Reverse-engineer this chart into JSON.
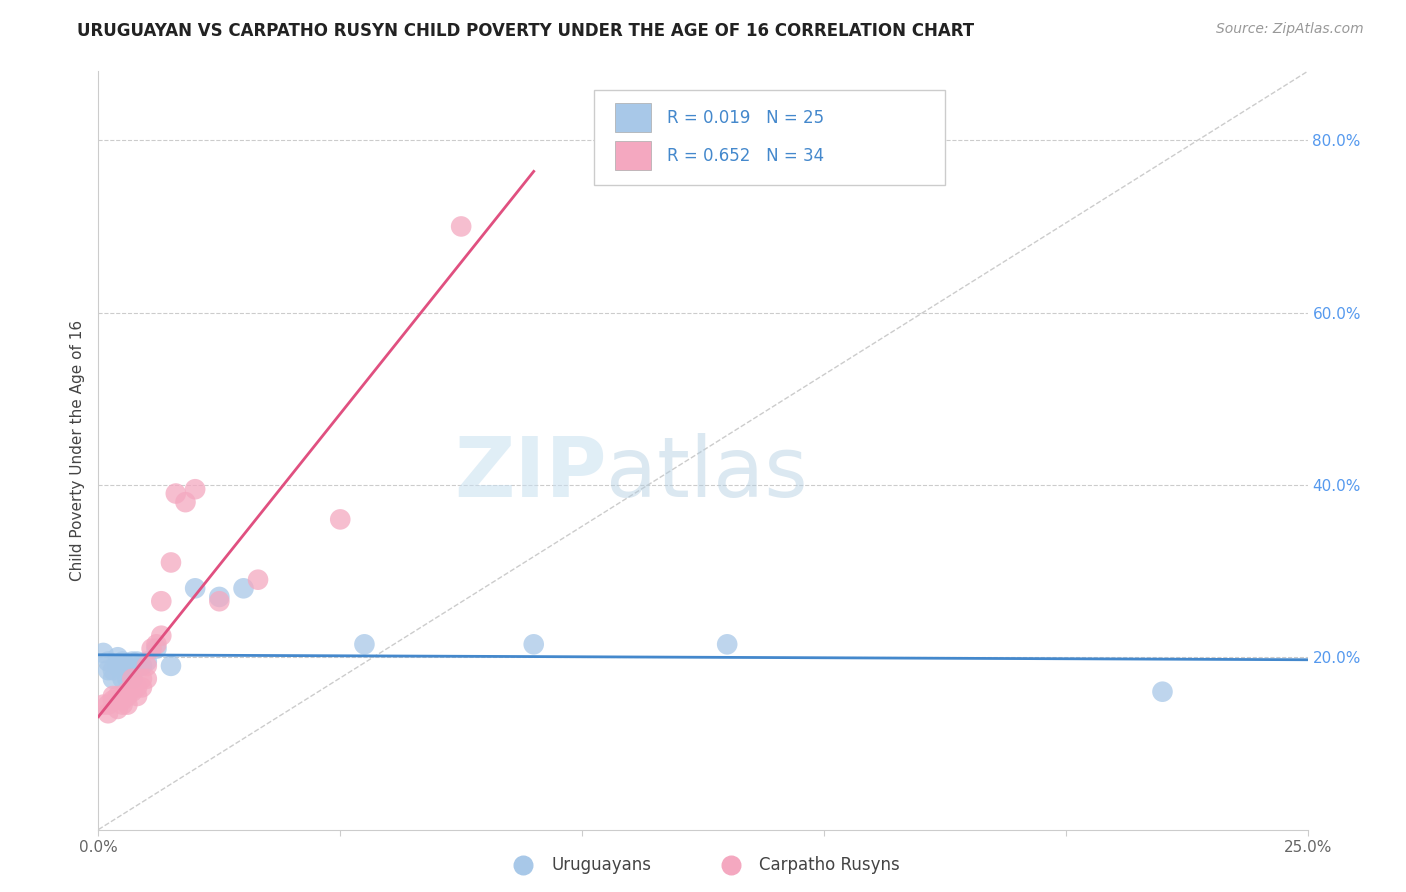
{
  "title": "URUGUAYAN VS CARPATHO RUSYN CHILD POVERTY UNDER THE AGE OF 16 CORRELATION CHART",
  "source": "Source: ZipAtlas.com",
  "ylabel": "Child Poverty Under the Age of 16",
  "xlim": [
    0.0,
    0.25
  ],
  "ylim": [
    0.0,
    0.88
  ],
  "xticks": [
    0.0,
    0.05,
    0.1,
    0.15,
    0.2,
    0.25
  ],
  "xticklabels": [
    "0.0%",
    "",
    "",
    "",
    "",
    "25.0%"
  ],
  "yticks_right": [
    0.2,
    0.4,
    0.6,
    0.8
  ],
  "ytick_labels_right": [
    "20.0%",
    "40.0%",
    "60.0%",
    "80.0%"
  ],
  "uruguayan_color": "#a8c8e8",
  "carpatho_color": "#f4a8c0",
  "uruguayan_line_color": "#4488cc",
  "carpatho_line_color": "#e05080",
  "legend_r1": "R = 0.019",
  "legend_n1": "N = 25",
  "legend_r2": "R = 0.652",
  "legend_n2": "N = 34",
  "background_color": "#ffffff",
  "uruguayan_x": [
    0.001,
    0.002,
    0.002,
    0.003,
    0.003,
    0.004,
    0.004,
    0.005,
    0.005,
    0.006,
    0.006,
    0.007,
    0.007,
    0.008,
    0.009,
    0.01,
    0.012,
    0.015,
    0.02,
    0.025,
    0.03,
    0.055,
    0.09,
    0.13,
    0.22
  ],
  "uruguayan_y": [
    0.205,
    0.195,
    0.185,
    0.175,
    0.185,
    0.19,
    0.2,
    0.175,
    0.195,
    0.175,
    0.19,
    0.195,
    0.175,
    0.195,
    0.19,
    0.195,
    0.21,
    0.19,
    0.28,
    0.27,
    0.28,
    0.215,
    0.215,
    0.215,
    0.16
  ],
  "carpatho_x": [
    0.001,
    0.002,
    0.002,
    0.003,
    0.003,
    0.004,
    0.004,
    0.005,
    0.005,
    0.005,
    0.006,
    0.006,
    0.006,
    0.007,
    0.007,
    0.007,
    0.008,
    0.008,
    0.009,
    0.009,
    0.01,
    0.01,
    0.011,
    0.012,
    0.013,
    0.013,
    0.015,
    0.016,
    0.018,
    0.02,
    0.025,
    0.033,
    0.05,
    0.075
  ],
  "carpatho_y": [
    0.145,
    0.145,
    0.135,
    0.15,
    0.155,
    0.155,
    0.14,
    0.145,
    0.15,
    0.155,
    0.145,
    0.155,
    0.16,
    0.175,
    0.165,
    0.16,
    0.165,
    0.155,
    0.175,
    0.165,
    0.175,
    0.19,
    0.21,
    0.215,
    0.225,
    0.265,
    0.31,
    0.39,
    0.38,
    0.395,
    0.265,
    0.29,
    0.36,
    0.7
  ],
  "uruguayan_trend_x": [
    0.0,
    0.25
  ],
  "carpatho_trend_x_end": 0.09
}
